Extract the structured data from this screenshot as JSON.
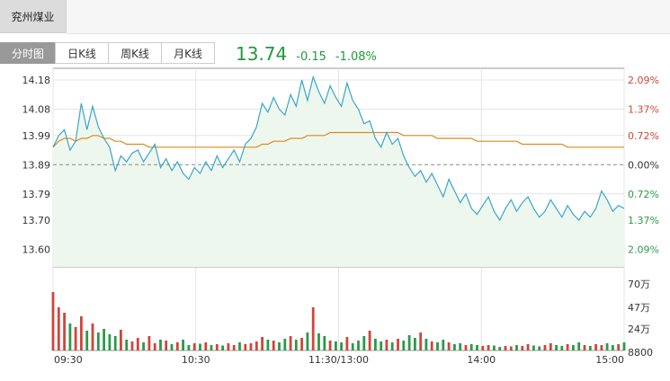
{
  "stock": {
    "name": "兖州煤业"
  },
  "tabs": [
    {
      "label": "分时图",
      "active": true
    },
    {
      "label": "日K线",
      "active": false
    },
    {
      "label": "周K线",
      "active": false
    },
    {
      "label": "月K线",
      "active": false
    }
  ],
  "quote": {
    "price": "13.74",
    "change": "-0.15",
    "change_pct": "-1.08%"
  },
  "colors": {
    "up": "#d0453a",
    "down": "#2b9a48",
    "price_line": "#3aa6c9",
    "avg_line": "#d98b1d",
    "fill": "#eef7ee",
    "grid": "#e4e4e4",
    "axis": "#999999",
    "price_text": "#1f9a3b"
  },
  "chart_data": {
    "type": "line",
    "prev_close": 13.89,
    "ylim": [
      13.54,
      14.22
    ],
    "y_ticks": [
      "14.18",
      "14.08",
      "13.99",
      "13.89",
      "13.79",
      "13.70",
      "13.60"
    ],
    "pct_ticks": [
      "2.09%",
      "1.37%",
      "0.72%",
      "0.00%",
      "0.72%",
      "1.37%",
      "2.09%"
    ],
    "x_ticks": [
      "09:30",
      "10:30",
      "11:30/13:00",
      "14:00",
      "15:00"
    ],
    "volume_ticks": [
      "70万",
      "47万",
      "24万",
      "8800"
    ],
    "volume_max": 700000,
    "series": [
      {
        "values": [
          13.95,
          13.99,
          14.01,
          13.94,
          13.97,
          14.1,
          14.01,
          14.09,
          14.02,
          13.98,
          13.95,
          13.87,
          13.92,
          13.9,
          13.93,
          13.94,
          13.9,
          13.93,
          13.96,
          13.88,
          13.91,
          13.87,
          13.9,
          13.86,
          13.84,
          13.88,
          13.86,
          13.9,
          13.87,
          13.92,
          13.88,
          13.91,
          13.94,
          13.9,
          13.96,
          13.98,
          14.02,
          14.1,
          14.07,
          14.12,
          14.08,
          14.06,
          14.13,
          14.09,
          14.18,
          14.11,
          14.19,
          14.14,
          14.1,
          14.16,
          14.12,
          14.09,
          14.17,
          14.11,
          14.08,
          14.03,
          14.04,
          13.98,
          13.95,
          14.0,
          13.96,
          13.98,
          13.92,
          13.88,
          13.85,
          13.87,
          13.83,
          13.86,
          13.82,
          13.78,
          13.84,
          13.8,
          13.76,
          13.79,
          13.74,
          13.72,
          13.75,
          13.78,
          13.73,
          13.7,
          13.74,
          13.77,
          13.73,
          13.76,
          13.78,
          13.74,
          13.71,
          13.73,
          13.77,
          13.74,
          13.71,
          13.75,
          13.72,
          13.7,
          13.73,
          13.71,
          13.74,
          13.8,
          13.77,
          13.73,
          13.75,
          13.74
        ]
      },
      {
        "values": [
          13.95,
          13.97,
          13.98,
          13.98,
          13.97,
          13.98,
          13.98,
          13.99,
          13.99,
          13.98,
          13.98,
          13.97,
          13.97,
          13.96,
          13.96,
          13.96,
          13.96,
          13.95,
          13.95,
          13.95,
          13.95,
          13.95,
          13.95,
          13.95,
          13.95,
          13.95,
          13.95,
          13.95,
          13.95,
          13.95,
          13.95,
          13.95,
          13.95,
          13.95,
          13.95,
          13.95,
          13.95,
          13.96,
          13.96,
          13.97,
          13.97,
          13.97,
          13.98,
          13.98,
          13.98,
          13.99,
          13.99,
          13.99,
          13.99,
          14.0,
          14.0,
          14.0,
          14.0,
          14.0,
          14.0,
          14.0,
          14.0,
          14.0,
          14.0,
          14.0,
          14.0,
          14.0,
          13.99,
          13.99,
          13.99,
          13.99,
          13.99,
          13.99,
          13.98,
          13.98,
          13.98,
          13.98,
          13.98,
          13.98,
          13.98,
          13.97,
          13.97,
          13.97,
          13.97,
          13.97,
          13.97,
          13.97,
          13.97,
          13.96,
          13.96,
          13.96,
          13.96,
          13.96,
          13.96,
          13.96,
          13.96,
          13.95,
          13.95,
          13.95,
          13.95,
          13.95,
          13.95,
          13.95,
          13.95,
          13.95,
          13.95,
          13.95
        ]
      }
    ],
    "volume": [
      650000,
      480000,
      420000,
      300000,
      260000,
      380000,
      220000,
      300000,
      200000,
      240000,
      180000,
      160000,
      230000,
      120000,
      100000,
      140000,
      90000,
      160000,
      80000,
      120000,
      110000,
      70000,
      90000,
      120000,
      60000,
      80000,
      75000,
      90000,
      60000,
      70000,
      55000,
      80000,
      60000,
      90000,
      70000,
      80000,
      100000,
      150000,
      120000,
      110000,
      90000,
      130000,
      160000,
      120000,
      140000,
      200000,
      480000,
      190000,
      160000,
      110000,
      100000,
      90000,
      150000,
      80000,
      110000,
      160000,
      220000,
      130000,
      100000,
      120000,
      90000,
      130000,
      110000,
      170000,
      140000,
      200000,
      130000,
      100000,
      90000,
      120000,
      90000,
      70000,
      80000,
      60000,
      70000,
      60000,
      50000,
      60000,
      55000,
      40000,
      50000,
      45000,
      60000,
      50000,
      70000,
      55000,
      45000,
      60000,
      80000,
      60000,
      50000,
      70000,
      60000,
      90000,
      60000,
      50000,
      70000,
      60000,
      80000,
      60000,
      70000,
      90000
    ]
  }
}
